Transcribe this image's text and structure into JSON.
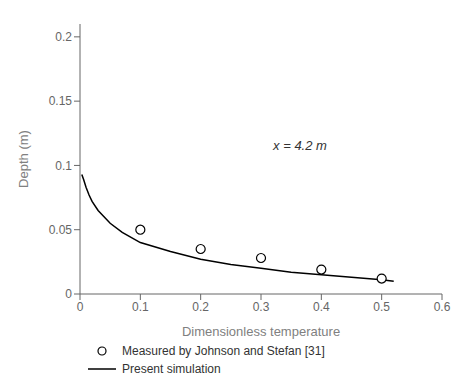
{
  "chart_data": {
    "type": "line",
    "xlabel": "Dimensionless temperature",
    "ylabel": "Depth (m)",
    "xlim": [
      0,
      0.6
    ],
    "ylim": [
      0,
      0.21
    ],
    "xticks": [
      0,
      0.1,
      0.2,
      0.3,
      0.4,
      0.5,
      0.6
    ],
    "yticks": [
      0,
      0.05,
      0.1,
      0.15,
      0.2
    ],
    "annotations": [
      {
        "text": "x = 4.2 m",
        "x": 0.32,
        "y": 0.115
      }
    ],
    "series": [
      {
        "name": "Measured by Johnson and Stefan [31]",
        "type": "scatter",
        "marker": "circle",
        "color": "black",
        "x": [
          0.1,
          0.2,
          0.3,
          0.4,
          0.5
        ],
        "values": [
          0.05,
          0.035,
          0.028,
          0.019,
          0.012
        ]
      },
      {
        "name": "Present simulation",
        "type": "line",
        "color": "black",
        "x": [
          0.003,
          0.006,
          0.01,
          0.015,
          0.02,
          0.03,
          0.05,
          0.07,
          0.1,
          0.15,
          0.2,
          0.25,
          0.3,
          0.35,
          0.4,
          0.45,
          0.5,
          0.52
        ],
        "values": [
          0.093,
          0.089,
          0.083,
          0.077,
          0.072,
          0.065,
          0.055,
          0.048,
          0.04,
          0.033,
          0.027,
          0.023,
          0.02,
          0.017,
          0.015,
          0.013,
          0.011,
          0.01
        ]
      }
    ],
    "legend": "bottom"
  }
}
